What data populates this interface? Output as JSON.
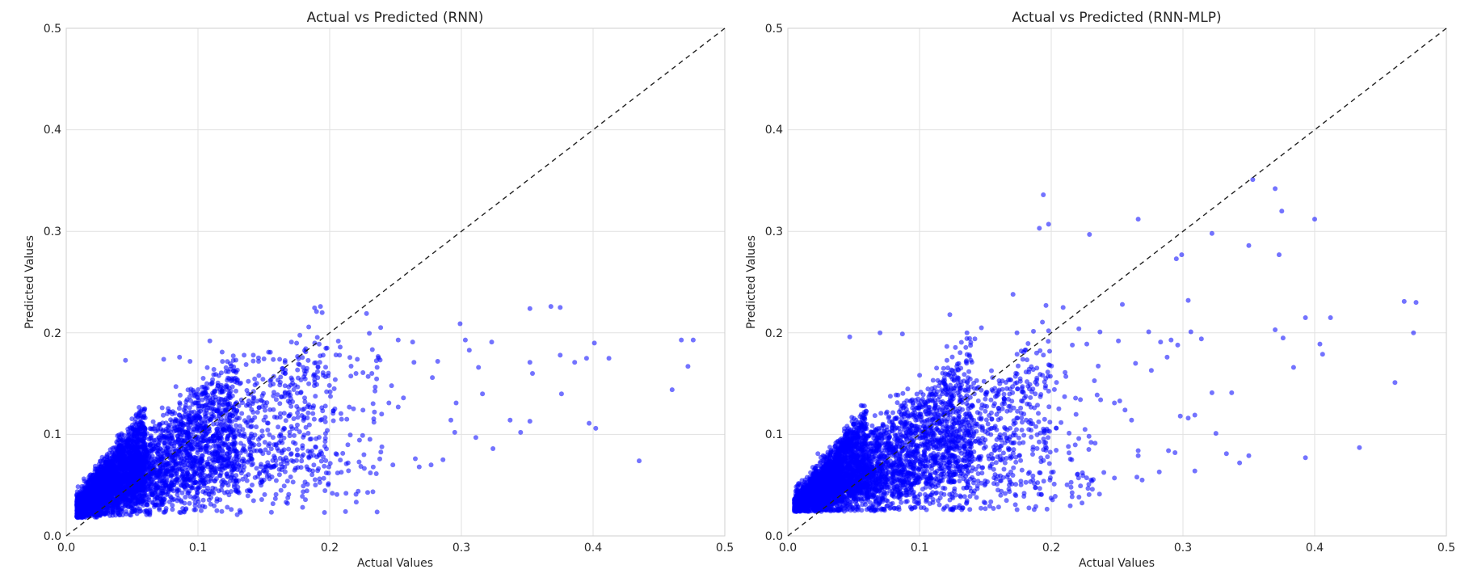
{
  "chart_data": [
    {
      "type": "scatter",
      "title": "Actual vs Predicted (RNN)",
      "xlabel": "Actual Values",
      "ylabel": "Predicted Values",
      "xlim": [
        0,
        0.5
      ],
      "ylim": [
        0,
        0.5
      ],
      "xticks": [
        "0.0",
        "0.1",
        "0.2",
        "0.3",
        "0.4",
        "0.5"
      ],
      "yticks": [
        "0.0",
        "0.1",
        "0.2",
        "0.3",
        "0.4",
        "0.5"
      ],
      "grid": true,
      "reference_line": {
        "style": "dashed",
        "from": [
          0,
          0
        ],
        "to": [
          0.5,
          0.5
        ]
      },
      "point_color": "#0000ff",
      "points": [
        [
          0.193,
          0.226
        ],
        [
          0.19,
          0.221
        ],
        [
          0.228,
          0.219
        ],
        [
          0.352,
          0.224
        ],
        [
          0.368,
          0.226
        ],
        [
          0.375,
          0.225
        ],
        [
          0.299,
          0.209
        ],
        [
          0.467,
          0.193
        ],
        [
          0.476,
          0.193
        ],
        [
          0.401,
          0.19
        ],
        [
          0.412,
          0.175
        ],
        [
          0.472,
          0.167
        ],
        [
          0.46,
          0.144
        ],
        [
          0.435,
          0.074
        ],
        [
          0.397,
          0.111
        ],
        [
          0.402,
          0.106
        ],
        [
          0.376,
          0.14
        ],
        [
          0.375,
          0.178
        ],
        [
          0.386,
          0.171
        ],
        [
          0.395,
          0.175
        ],
        [
          0.352,
          0.171
        ],
        [
          0.354,
          0.16
        ],
        [
          0.352,
          0.113
        ],
        [
          0.337,
          0.114
        ],
        [
          0.345,
          0.102
        ],
        [
          0.323,
          0.191
        ],
        [
          0.303,
          0.193
        ],
        [
          0.306,
          0.183
        ],
        [
          0.313,
          0.166
        ],
        [
          0.316,
          0.14
        ],
        [
          0.311,
          0.097
        ],
        [
          0.324,
          0.086
        ],
        [
          0.295,
          0.102
        ],
        [
          0.292,
          0.114
        ],
        [
          0.286,
          0.075
        ],
        [
          0.296,
          0.131
        ],
        [
          0.278,
          0.156
        ],
        [
          0.264,
          0.171
        ],
        [
          0.282,
          0.172
        ],
        [
          0.263,
          0.191
        ],
        [
          0.252,
          0.193
        ],
        [
          0.277,
          0.07
        ],
        [
          0.268,
          0.068
        ],
        [
          0.265,
          0.076
        ],
        [
          0.248,
          0.07
        ],
        [
          0.247,
          0.148
        ],
        [
          0.252,
          0.127
        ],
        [
          0.256,
          0.136
        ],
        [
          0.245,
          0.131
        ],
        [
          0.212,
          0.024
        ],
        [
          0.22,
          0.041
        ],
        [
          0.202,
          0.042
        ],
        [
          0.168,
          0.032
        ],
        [
          0.195,
          0.178
        ],
        [
          0.198,
          0.185
        ],
        [
          0.171,
          0.191
        ],
        [
          0.232,
          0.16
        ],
        [
          0.236,
          0.166
        ],
        [
          0.221,
          0.174
        ],
        [
          0.208,
          0.186
        ],
        [
          0.214,
          0.072
        ],
        [
          0.206,
          0.062
        ],
        [
          0.226,
          0.08
        ],
        [
          0.225,
          0.099
        ],
        [
          0.213,
          0.115
        ],
        [
          0.234,
          0.122
        ],
        [
          0.109,
          0.192
        ],
        [
          0.135,
          0.178
        ],
        [
          0.142,
          0.178
        ],
        [
          0.155,
          0.181
        ],
        [
          0.146,
          0.172
        ],
        [
          0.162,
          0.174
        ],
        [
          0.18,
          0.166
        ],
        [
          0.045,
          0.173
        ],
        [
          0.074,
          0.174
        ],
        [
          0.086,
          0.176
        ],
        [
          0.094,
          0.172
        ]
      ],
      "dense_cloud": [
        {
          "x_range": [
            0.008,
            0.06
          ],
          "slope_range": [
            0.35,
            1.8
          ],
          "offset": 0.018,
          "noise": 0.012,
          "count": 2000
        },
        {
          "x_range": [
            0.02,
            0.13
          ],
          "slope_range": [
            0.25,
            1.2
          ],
          "offset": 0.02,
          "noise": 0.022,
          "count": 1900
        },
        {
          "x_range": [
            0.05,
            0.2
          ],
          "slope_range": [
            0.15,
            0.95
          ],
          "offset": 0.022,
          "noise": 0.03,
          "count": 750
        },
        {
          "x_range": [
            0.12,
            0.24
          ],
          "slope_range": [
            0.1,
            0.75
          ],
          "offset": 0.02,
          "noise": 0.03,
          "count": 230
        }
      ]
    },
    {
      "type": "scatter",
      "title": "Actual vs Predicted (RNN-MLP)",
      "xlabel": "Actual Values",
      "ylabel": "Predicted Values",
      "xlim": [
        0,
        0.5
      ],
      "ylim": [
        0,
        0.5
      ],
      "xticks": [
        "0.0",
        "0.1",
        "0.2",
        "0.3",
        "0.4",
        "0.5"
      ],
      "yticks": [
        "0.0",
        "0.1",
        "0.2",
        "0.3",
        "0.4",
        "0.5"
      ],
      "grid": true,
      "reference_line": {
        "style": "dashed",
        "from": [
          0,
          0
        ],
        "to": [
          0.5,
          0.5
        ]
      },
      "point_color": "#0000ff",
      "points": [
        [
          0.194,
          0.336
        ],
        [
          0.191,
          0.303
        ],
        [
          0.198,
          0.307
        ],
        [
          0.229,
          0.297
        ],
        [
          0.266,
          0.312
        ],
        [
          0.353,
          0.351
        ],
        [
          0.37,
          0.342
        ],
        [
          0.375,
          0.32
        ],
        [
          0.4,
          0.312
        ],
        [
          0.322,
          0.298
        ],
        [
          0.299,
          0.277
        ],
        [
          0.295,
          0.273
        ],
        [
          0.35,
          0.286
        ],
        [
          0.373,
          0.277
        ],
        [
          0.304,
          0.232
        ],
        [
          0.254,
          0.228
        ],
        [
          0.196,
          0.227
        ],
        [
          0.209,
          0.225
        ],
        [
          0.393,
          0.215
        ],
        [
          0.412,
          0.215
        ],
        [
          0.468,
          0.231
        ],
        [
          0.477,
          0.23
        ],
        [
          0.475,
          0.2
        ],
        [
          0.37,
          0.203
        ],
        [
          0.376,
          0.195
        ],
        [
          0.404,
          0.189
        ],
        [
          0.406,
          0.179
        ],
        [
          0.384,
          0.166
        ],
        [
          0.461,
          0.151
        ],
        [
          0.434,
          0.087
        ],
        [
          0.393,
          0.077
        ],
        [
          0.35,
          0.079
        ],
        [
          0.343,
          0.072
        ],
        [
          0.333,
          0.081
        ],
        [
          0.337,
          0.141
        ],
        [
          0.322,
          0.141
        ],
        [
          0.325,
          0.101
        ],
        [
          0.309,
          0.064
        ],
        [
          0.298,
          0.118
        ],
        [
          0.304,
          0.116
        ],
        [
          0.309,
          0.119
        ],
        [
          0.296,
          0.188
        ],
        [
          0.291,
          0.193
        ],
        [
          0.314,
          0.194
        ],
        [
          0.306,
          0.201
        ],
        [
          0.283,
          0.191
        ],
        [
          0.288,
          0.176
        ],
        [
          0.274,
          0.201
        ],
        [
          0.264,
          0.17
        ],
        [
          0.276,
          0.163
        ],
        [
          0.289,
          0.084
        ],
        [
          0.294,
          0.082
        ],
        [
          0.266,
          0.084
        ],
        [
          0.266,
          0.079
        ],
        [
          0.265,
          0.058
        ],
        [
          0.282,
          0.063
        ],
        [
          0.269,
          0.055
        ],
        [
          0.248,
          0.057
        ],
        [
          0.252,
          0.133
        ],
        [
          0.256,
          0.124
        ],
        [
          0.261,
          0.114
        ],
        [
          0.248,
          0.131
        ],
        [
          0.251,
          0.192
        ],
        [
          0.227,
          0.189
        ],
        [
          0.221,
          0.204
        ],
        [
          0.216,
          0.188
        ],
        [
          0.171,
          0.238
        ],
        [
          0.198,
          0.202
        ],
        [
          0.174,
          0.2
        ],
        [
          0.199,
          0.055
        ],
        [
          0.203,
          0.039
        ],
        [
          0.215,
          0.048
        ],
        [
          0.123,
          0.218
        ],
        [
          0.147,
          0.205
        ],
        [
          0.136,
          0.2
        ],
        [
          0.142,
          0.194
        ],
        [
          0.047,
          0.196
        ],
        [
          0.07,
          0.2
        ],
        [
          0.087,
          0.199
        ]
      ],
      "dense_cloud": [
        {
          "x_range": [
            0.005,
            0.06
          ],
          "slope_range": [
            0.3,
            1.7
          ],
          "offset": 0.024,
          "noise": 0.012,
          "count": 2000
        },
        {
          "x_range": [
            0.02,
            0.14
          ],
          "slope_range": [
            0.2,
            1.15
          ],
          "offset": 0.024,
          "noise": 0.025,
          "count": 1900
        },
        {
          "x_range": [
            0.06,
            0.2
          ],
          "slope_range": [
            0.1,
            0.85
          ],
          "offset": 0.025,
          "noise": 0.032,
          "count": 750
        },
        {
          "x_range": [
            0.12,
            0.24
          ],
          "slope_range": [
            0.05,
            0.7
          ],
          "offset": 0.025,
          "noise": 0.035,
          "count": 230
        }
      ]
    }
  ]
}
